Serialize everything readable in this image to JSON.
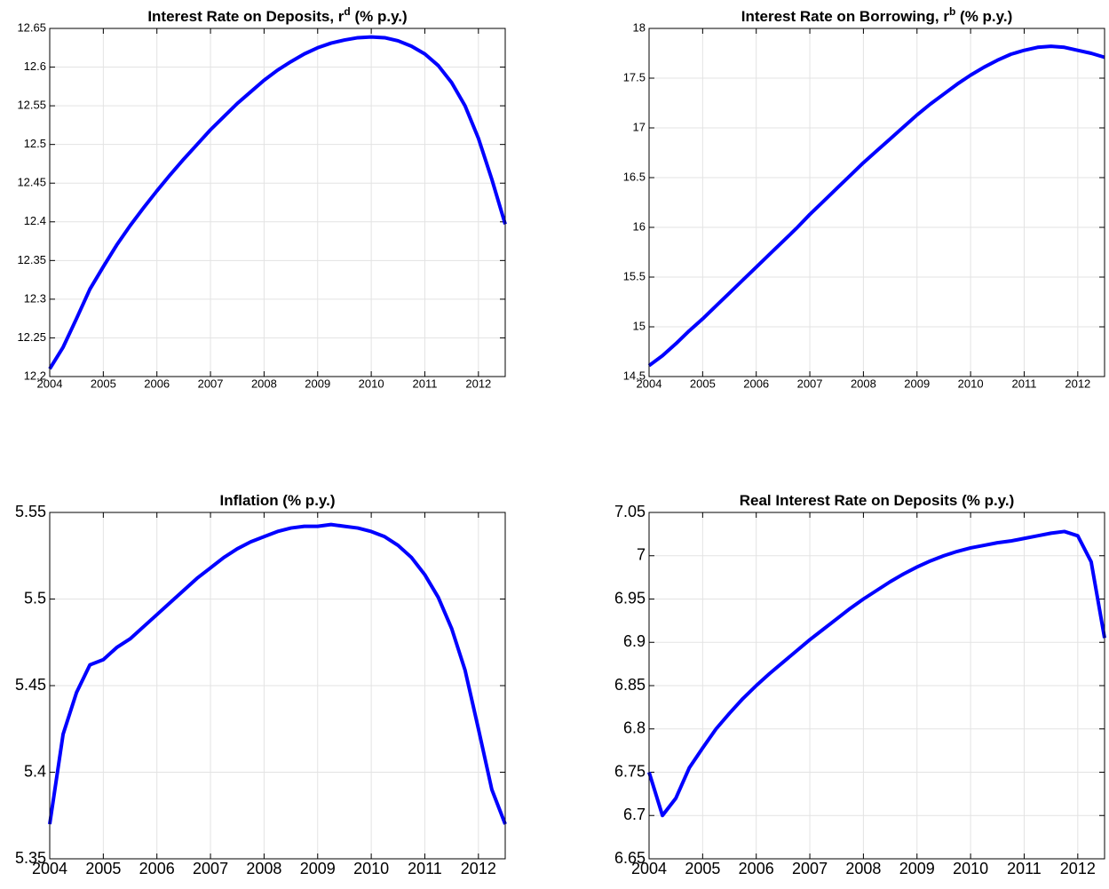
{
  "chart_data": [
    {
      "type": "line",
      "title": {
        "text": "Interest Rate on Deposits, r",
        "superscript": "d",
        "suffix": " (% p.y.)"
      },
      "x": [
        2004,
        2004.25,
        2004.5,
        2004.75,
        2005,
        2005.25,
        2005.5,
        2005.75,
        2006,
        2006.25,
        2006.5,
        2006.75,
        2007,
        2007.25,
        2007.5,
        2007.75,
        2008,
        2008.25,
        2008.5,
        2008.75,
        2009,
        2009.25,
        2009.5,
        2009.75,
        2010,
        2010.25,
        2010.5,
        2010.75,
        2011,
        2011.25,
        2011.5,
        2011.75,
        2012,
        2012.25,
        2012.5
      ],
      "values": [
        12.21,
        12.238,
        12.275,
        12.313,
        12.342,
        12.37,
        12.395,
        12.418,
        12.44,
        12.461,
        12.481,
        12.5,
        12.519,
        12.536,
        12.553,
        12.568,
        12.583,
        12.596,
        12.607,
        12.617,
        12.625,
        12.631,
        12.635,
        12.638,
        12.639,
        12.638,
        12.634,
        12.627,
        12.617,
        12.602,
        12.58,
        12.55,
        12.508,
        12.455,
        12.397
      ],
      "color": "#0000ff",
      "xlim": [
        2004,
        2012.5
      ],
      "xticks": [
        2004,
        2005,
        2006,
        2007,
        2008,
        2009,
        2010,
        2011,
        2012
      ],
      "ylim": [
        12.2,
        12.65
      ],
      "yticks": [
        12.2,
        12.25,
        12.3,
        12.35,
        12.4,
        12.45,
        12.5,
        12.55,
        12.6,
        12.65
      ],
      "grid": true
    },
    {
      "type": "line",
      "title": {
        "text": "Interest Rate on Borrowing, r",
        "superscript": "b",
        "suffix": " (% p.y.)"
      },
      "x": [
        2004,
        2004.25,
        2004.5,
        2004.75,
        2005,
        2005.25,
        2005.5,
        2005.75,
        2006,
        2006.25,
        2006.5,
        2006.75,
        2007,
        2007.25,
        2007.5,
        2007.75,
        2008,
        2008.25,
        2008.5,
        2008.75,
        2009,
        2009.25,
        2009.5,
        2009.75,
        2010,
        2010.25,
        2010.5,
        2010.75,
        2011,
        2011.25,
        2011.5,
        2011.75,
        2012,
        2012.25,
        2012.5
      ],
      "values": [
        14.61,
        14.71,
        14.83,
        14.96,
        15.08,
        15.21,
        15.34,
        15.47,
        15.6,
        15.73,
        15.86,
        15.99,
        16.13,
        16.26,
        16.39,
        16.52,
        16.65,
        16.77,
        16.89,
        17.01,
        17.13,
        17.24,
        17.34,
        17.44,
        17.53,
        17.61,
        17.68,
        17.74,
        17.78,
        17.81,
        17.82,
        17.81,
        17.78,
        17.75,
        17.71
      ],
      "color": "#0000ff",
      "xlim": [
        2004,
        2012.5
      ],
      "xticks": [
        2004,
        2005,
        2006,
        2007,
        2008,
        2009,
        2010,
        2011,
        2012
      ],
      "ylim": [
        14.5,
        18
      ],
      "yticks": [
        14.5,
        15,
        15.5,
        16,
        16.5,
        17,
        17.5,
        18
      ],
      "grid": true
    },
    {
      "type": "line",
      "title": "Inflation (% p.y.)",
      "x": [
        2004,
        2004.25,
        2004.5,
        2004.75,
        2005,
        2005.25,
        2005.5,
        2005.75,
        2006,
        2006.25,
        2006.5,
        2006.75,
        2007,
        2007.25,
        2007.5,
        2007.75,
        2008,
        2008.25,
        2008.5,
        2008.75,
        2009,
        2009.25,
        2009.5,
        2009.75,
        2010,
        2010.25,
        2010.5,
        2010.75,
        2011,
        2011.25,
        2011.5,
        2011.75,
        2012,
        2012.25,
        2012.5
      ],
      "values": [
        5.37,
        5.422,
        5.446,
        5.462,
        5.465,
        5.472,
        5.477,
        5.484,
        5.491,
        5.498,
        5.505,
        5.512,
        5.518,
        5.524,
        5.529,
        5.533,
        5.536,
        5.539,
        5.541,
        5.542,
        5.542,
        5.543,
        5.542,
        5.541,
        5.539,
        5.536,
        5.531,
        5.524,
        5.514,
        5.501,
        5.483,
        5.459,
        5.425,
        5.39,
        5.37
      ],
      "color": "#0000ff",
      "xlim": [
        2004,
        2012.5
      ],
      "xticks": [
        2004,
        2005,
        2006,
        2007,
        2008,
        2009,
        2010,
        2011,
        2012
      ],
      "ylim": [
        5.35,
        5.55
      ],
      "yticks": [
        5.35,
        5.4,
        5.45,
        5.5,
        5.55
      ],
      "grid": true
    },
    {
      "type": "line",
      "title": "Real Interest Rate on Deposits (% p.y.)",
      "x": [
        2004,
        2004.25,
        2004.5,
        2004.75,
        2005,
        2005.25,
        2005.5,
        2005.75,
        2006,
        2006.25,
        2006.5,
        2006.75,
        2007,
        2007.25,
        2007.5,
        2007.75,
        2008,
        2008.25,
        2008.5,
        2008.75,
        2009,
        2009.25,
        2009.5,
        2009.75,
        2010,
        2010.25,
        2010.5,
        2010.75,
        2011,
        2011.25,
        2011.5,
        2011.75,
        2012,
        2012.25,
        2012.5
      ],
      "values": [
        6.75,
        6.7,
        6.72,
        6.755,
        6.778,
        6.8,
        6.818,
        6.835,
        6.85,
        6.864,
        6.877,
        6.89,
        6.903,
        6.915,
        6.927,
        6.939,
        6.95,
        6.96,
        6.97,
        6.979,
        6.987,
        6.994,
        7.0,
        7.005,
        7.009,
        7.012,
        7.015,
        7.017,
        7.02,
        7.023,
        7.026,
        7.028,
        7.023,
        6.993,
        6.905
      ],
      "color": "#0000ff",
      "xlim": [
        2004,
        2012.5
      ],
      "xticks": [
        2004,
        2005,
        2006,
        2007,
        2008,
        2009,
        2010,
        2011,
        2012
      ],
      "ylim": [
        6.65,
        7.05
      ],
      "yticks": [
        6.65,
        6.7,
        6.75,
        6.8,
        6.85,
        6.9,
        6.95,
        7,
        7.05
      ],
      "grid": true
    }
  ]
}
